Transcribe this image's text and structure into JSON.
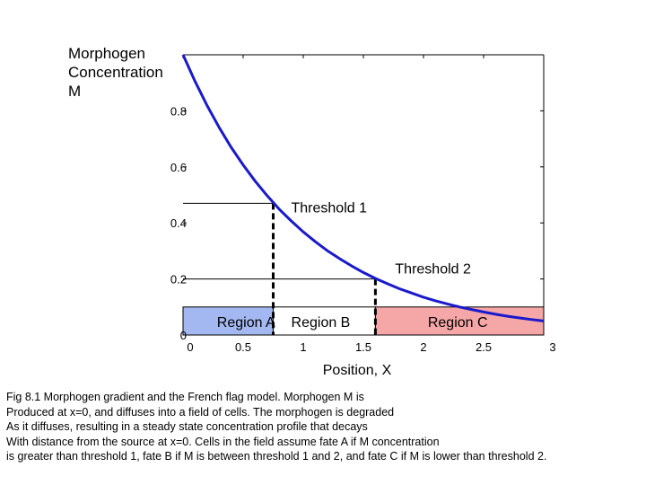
{
  "chart_data": {
    "type": "line",
    "ylabel_lines": [
      "Morphogen",
      "Concentration",
      "M"
    ],
    "xlabel": "Position, X",
    "xlim": [
      0,
      3
    ],
    "ylim": [
      0,
      1
    ],
    "x_ticks": [
      {
        "value": 0,
        "label": "0"
      },
      {
        "value": 0.5,
        "label": "0.5"
      },
      {
        "value": 1,
        "label": "1"
      },
      {
        "value": 1.5,
        "label": "1.5"
      },
      {
        "value": 2,
        "label": "2"
      },
      {
        "value": 2.5,
        "label": "2.5"
      },
      {
        "value": 3,
        "label": "3"
      }
    ],
    "y_ticks": [
      {
        "value": 0,
        "label": "0"
      },
      {
        "value": 0.2,
        "label": "0.2"
      },
      {
        "value": 0.4,
        "label": "0.4"
      },
      {
        "value": 0.6,
        "label": "0.6"
      },
      {
        "value": 0.8,
        "label": "0.8"
      },
      {
        "value": 1,
        "label": ""
      }
    ],
    "curve": {
      "color": "#1a1acc",
      "x": [
        0,
        0.1,
        0.2,
        0.3,
        0.4,
        0.5,
        0.6,
        0.7,
        0.8,
        0.9,
        1.0,
        1.1,
        1.2,
        1.3,
        1.4,
        1.5,
        1.6,
        1.7,
        1.8,
        1.9,
        2.0,
        2.1,
        2.2,
        2.3,
        2.4,
        2.5,
        2.6,
        2.7,
        2.8,
        2.9,
        3.0
      ],
      "y": [
        1.0,
        0.905,
        0.819,
        0.741,
        0.67,
        0.607,
        0.549,
        0.497,
        0.449,
        0.407,
        0.368,
        0.333,
        0.301,
        0.273,
        0.247,
        0.223,
        0.202,
        0.183,
        0.165,
        0.15,
        0.135,
        0.122,
        0.111,
        0.1,
        0.091,
        0.082,
        0.074,
        0.067,
        0.061,
        0.055,
        0.05
      ]
    },
    "thresholds": [
      {
        "label": "Threshold 1",
        "x": 0.75,
        "y": 0.47
      },
      {
        "label": "Threshold 2",
        "x": 1.6,
        "y": 0.2
      }
    ],
    "regions": [
      {
        "label": "Region A",
        "x_start": 0,
        "x_end": 0.75,
        "color": "#a3b8f0"
      },
      {
        "label": "Region B",
        "x_start": 0.75,
        "x_end": 1.6,
        "color": "#ffffff"
      },
      {
        "label": "Region C",
        "x_start": 1.6,
        "x_end": 3,
        "color": "#f5a6a6"
      }
    ],
    "region_band_y": [
      0,
      0.1
    ]
  },
  "caption_lines": [
    "Fig 8.1 Morphogen gradient and the French flag model. Morphogen M is",
    "Produced at x=0, and diffuses into a field of cells. The morphogen is degraded",
    "As it diffuses, resulting in a steady state concentration profile that decays",
    "With distance from the source at x=0. Cells in the field assume fate A if M concentration",
    "is greater than threshold 1, fate B if M is between threshold 1 and 2, and fate C if M is lower than threshold 2."
  ]
}
